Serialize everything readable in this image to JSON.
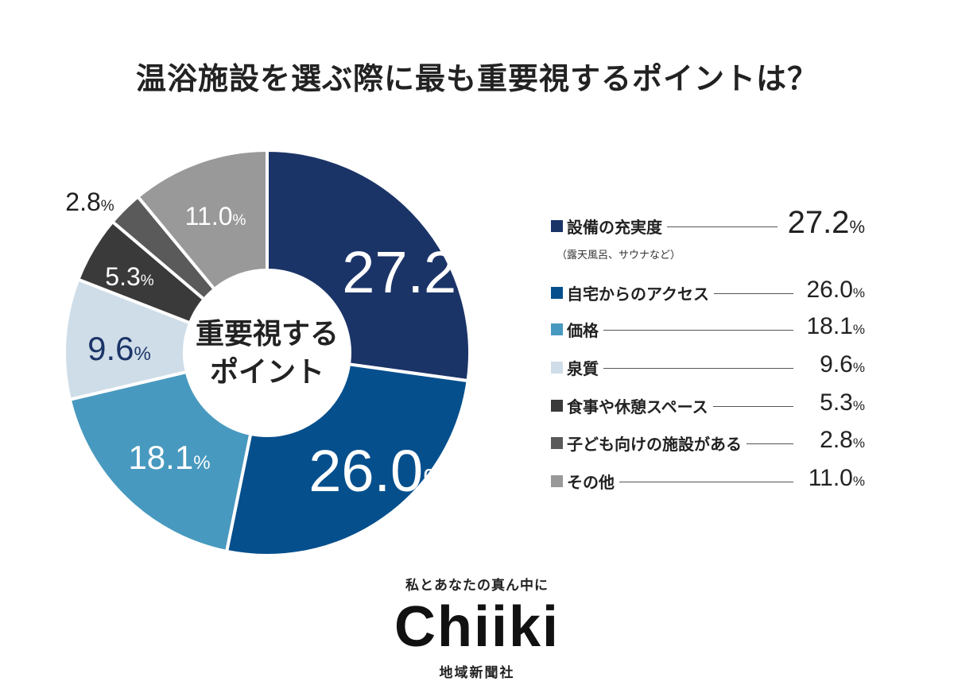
{
  "chart_data": {
    "type": "pie",
    "title": "温浴施設を選ぶ際に最も重要視するポイントは？",
    "center_label_lines": [
      "重要視する",
      "ポイント"
    ],
    "unit": "%",
    "categories": [
      "設備の充実度",
      "自宅からのアクセス",
      "価格",
      "泉質",
      "食事や休憩スペース",
      "子ども向けの施設がある",
      "その他"
    ],
    "values": [
      27.2,
      26.0,
      18.1,
      9.6,
      5.3,
      2.8,
      11.0
    ],
    "colors": [
      "#1b3468",
      "#054f8d",
      "#4899bf",
      "#cfdde8",
      "#3a3a3a",
      "#5a5a5a",
      "#999999"
    ],
    "labels": [
      {
        "num": "27.2",
        "pct": "%"
      },
      {
        "num": "26.0",
        "pct": "%"
      },
      {
        "num": "18.1",
        "pct": "%"
      },
      {
        "num": "9.6",
        "pct": "%"
      },
      {
        "num": "5.3",
        "pct": "%"
      },
      {
        "num": "2.8",
        "pct": "%"
      },
      {
        "num": "11.0",
        "pct": "%"
      }
    ],
    "legend_note": "（露天風呂、サウナなど）"
  },
  "logo": {
    "tagline": "私とあなたの真ん中に",
    "name": "Chiiki",
    "sub": "地域新聞社"
  }
}
